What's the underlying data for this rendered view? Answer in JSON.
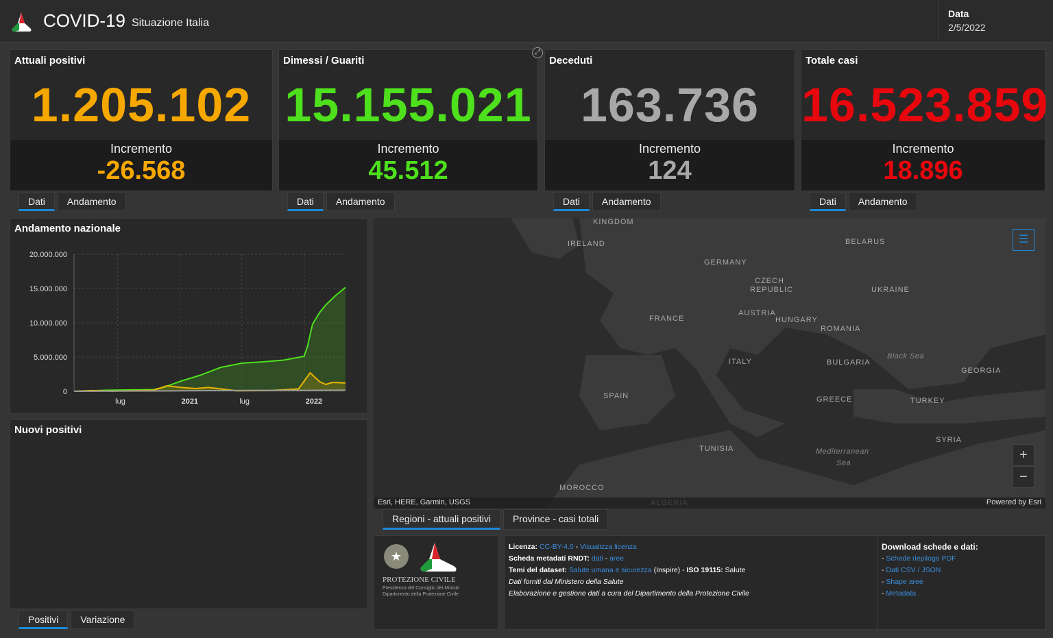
{
  "header": {
    "title": "COVID-19",
    "subtitle": "Situazione Italia",
    "date_label": "Data",
    "date_value": "2/5/2022"
  },
  "cards": [
    {
      "title": "Attuali positivi",
      "value": "1.205.102",
      "incr_label": "Incremento",
      "incr": "-26.568",
      "color": "#f7a800",
      "tabs": [
        "Dati",
        "Andamento"
      ]
    },
    {
      "title": "Dimessi / Guariti",
      "value": "15.155.021",
      "incr_label": "Incremento",
      "incr": "45.512",
      "color": "#4ee01c",
      "tabs": [
        "Dati",
        "Andamento"
      ]
    },
    {
      "title": "Deceduti",
      "value": "163.736",
      "incr_label": "Incremento",
      "incr": "124",
      "color": "#a8a8a8",
      "tabs": [
        "Dati",
        "Andamento"
      ]
    },
    {
      "title": "Totale casi",
      "value": "16.523.859",
      "incr_label": "Incremento",
      "incr": "18.896",
      "color": "#e8070d",
      "tabs": [
        "Dati",
        "Andamento"
      ]
    }
  ],
  "chart_panel": {
    "title": "Andamento nazionale"
  },
  "chart_data": {
    "type": "area",
    "y_ticks": [
      "20.000.000",
      "15.000.000",
      "10.000.000",
      "5.000.000",
      "0"
    ],
    "ylim": [
      0,
      20000000
    ],
    "x_ticks": [
      {
        "date": "2020-07-01",
        "label": "lug"
      },
      {
        "date": "2021-01-01",
        "label": "2021"
      },
      {
        "date": "2021-07-01",
        "label": "lug"
      },
      {
        "date": "2022-01-01",
        "label": "2022"
      }
    ],
    "xlim": [
      "2020-02-24",
      "2022-05-02"
    ],
    "grid": true,
    "series": [
      {
        "color": "#4ee01c",
        "fill": true,
        "points": [
          [
            "2020-02-24",
            0
          ],
          [
            "2020-06-01",
            160000
          ],
          [
            "2020-10-15",
            250000
          ],
          [
            "2020-11-15",
            600000
          ],
          [
            "2021-01-01",
            1450000
          ],
          [
            "2021-03-01",
            2350000
          ],
          [
            "2021-05-01",
            3500000
          ],
          [
            "2021-07-01",
            4100000
          ],
          [
            "2021-09-01",
            4300000
          ],
          [
            "2021-11-01",
            4550000
          ],
          [
            "2021-12-31",
            5100000
          ],
          [
            "2022-01-10",
            6500000
          ],
          [
            "2022-01-25",
            9800000
          ],
          [
            "2022-02-15",
            11500000
          ],
          [
            "2022-03-05",
            12600000
          ],
          [
            "2022-04-01",
            13900000
          ],
          [
            "2022-05-02",
            15155021
          ]
        ]
      },
      {
        "color": "#e8b400",
        "fill": true,
        "points": [
          [
            "2020-02-24",
            0
          ],
          [
            "2020-04-15",
            105000
          ],
          [
            "2020-06-15",
            20000
          ],
          [
            "2020-10-15",
            150000
          ],
          [
            "2020-11-22",
            800000
          ],
          [
            "2021-01-01",
            570000
          ],
          [
            "2021-02-15",
            400000
          ],
          [
            "2021-03-25",
            560000
          ],
          [
            "2021-05-01",
            350000
          ],
          [
            "2021-06-15",
            80000
          ],
          [
            "2021-09-15",
            100000
          ],
          [
            "2021-12-15",
            350000
          ],
          [
            "2022-01-18",
            2700000
          ],
          [
            "2022-02-15",
            1400000
          ],
          [
            "2022-03-05",
            1000000
          ],
          [
            "2022-03-25",
            1300000
          ],
          [
            "2022-05-02",
            1205102
          ]
        ]
      },
      {
        "color": "#9a9a9a",
        "fill": false,
        "points": [
          [
            "2020-02-24",
            0
          ],
          [
            "2020-06-01",
            34000
          ],
          [
            "2021-01-01",
            75000
          ],
          [
            "2021-07-01",
            128000
          ],
          [
            "2022-01-01",
            137000
          ],
          [
            "2022-05-02",
            163736
          ]
        ]
      }
    ]
  },
  "new_panel": {
    "title": "Nuovi positivi",
    "tabs": [
      "Positivi",
      "Variazione"
    ]
  },
  "map": {
    "labels": [
      "KINGDOM",
      "IRELAND",
      "GERMANY",
      "BELARUS",
      "CZECH",
      "REPUBLIC",
      "UKRAINE",
      "FRANCE",
      "AUSTRIA",
      "HUNGARY",
      "ROMANIA",
      "ITALY",
      "BULGARIA",
      "SPAIN",
      "GREECE",
      "TURKEY",
      "GEORGIA",
      "TUNISIA",
      "SYRIA",
      "MOROCCO",
      "ALGERIA"
    ],
    "seas": [
      "Black Sea",
      "Mediterranean",
      "Sea"
    ],
    "attribution": "Esri, HERE, Garmin, USGS",
    "powered": "Powered by Esri",
    "zoom_in": "+",
    "zoom_out": "−"
  },
  "map_tabs": [
    "Regioni - attuali positivi",
    "Province - casi totali"
  ],
  "logo": {
    "name": "PROTEZIONE CIVILE",
    "line1": "Presidenza del Consiglio dei Ministri",
    "line2": "Dipartimento della Protezione Civile"
  },
  "info": {
    "lic_label": "Licenza:",
    "lic": "CC-BY-4.0",
    "sep": " - ",
    "lic_view": "Visualizza licenza",
    "rndt_label": "Scheda metadati RNDT:",
    "rndt1": "dati",
    "rndt2": "aree",
    "temi_label": "Temi del dataset:",
    "temi": "Salute umana e sicurezza",
    "inspire": " (Inspire) - ",
    "iso_label": "ISO 19115:",
    "iso": " Salute",
    "line4": "Dati forniti dal Ministero della Salute",
    "line5": "Elaborazione e gestione dati a cura del Dipartimento della Protezione Civile"
  },
  "downloads": {
    "title": "Download schede e dati:",
    "items": [
      "Schede riepilogo PDF",
      "Dati CSV / JSON",
      "Shape aree",
      "Metadata"
    ]
  }
}
